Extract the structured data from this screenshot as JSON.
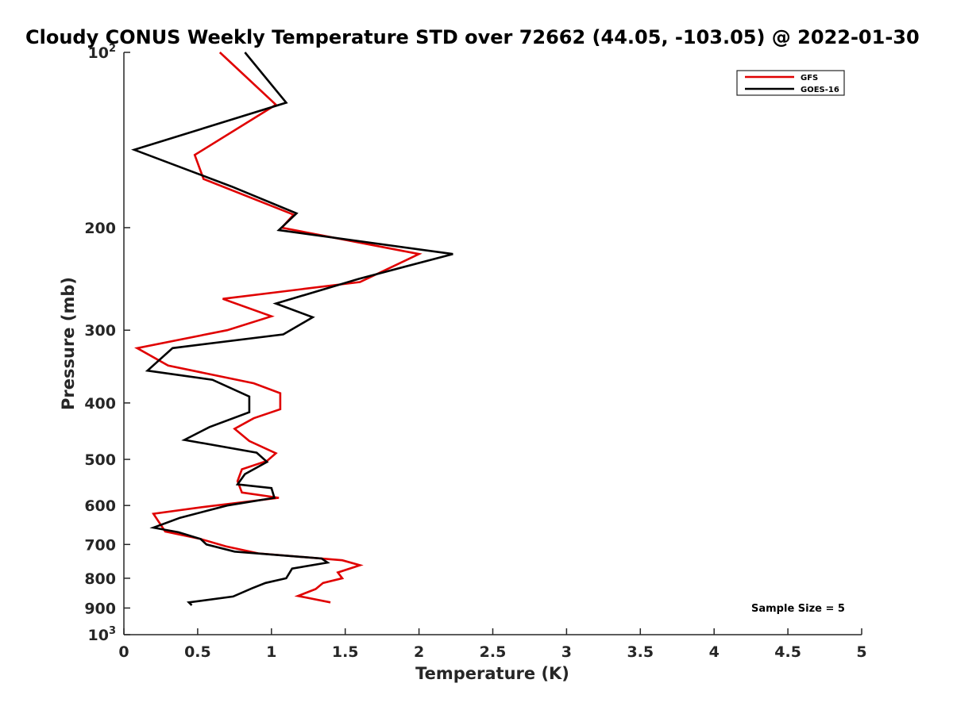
{
  "chart_data": {
    "type": "line",
    "title": "Cloudy CONUS Weekly Temperature STD over 72662 (44.05, -103.05) @ 2022-01-30",
    "xlabel": "Temperature (K)",
    "ylabel": "Pressure (mb)",
    "xlim": [
      0,
      5
    ],
    "ylim": [
      100,
      1000
    ],
    "y_scale": "log",
    "y_reversed": true,
    "grid": false,
    "legend_position": "top-right",
    "x_ticks": [
      0,
      0.5,
      1,
      1.5,
      2,
      2.5,
      3,
      3.5,
      4,
      4.5,
      5
    ],
    "x_tick_labels": [
      "0",
      "0.5",
      "1",
      "1.5",
      "2",
      "2.5",
      "3",
      "3.5",
      "4",
      "4.5",
      "5"
    ],
    "y_ticks": [
      100,
      200,
      300,
      400,
      500,
      600,
      700,
      800,
      900,
      1000
    ],
    "y_tick_labels": [
      {
        "base": "10",
        "exp": "2"
      },
      {
        "base": "200",
        "exp": ""
      },
      {
        "base": "300",
        "exp": ""
      },
      {
        "base": "400",
        "exp": ""
      },
      {
        "base": "500",
        "exp": ""
      },
      {
        "base": "600",
        "exp": ""
      },
      {
        "base": "700",
        "exp": ""
      },
      {
        "base": "800",
        "exp": ""
      },
      {
        "base": "900",
        "exp": ""
      },
      {
        "base": "10",
        "exp": "3"
      }
    ],
    "series": [
      {
        "name": "GFS",
        "color": "#e00000",
        "points": [
          [
            0.65,
            100
          ],
          [
            1.03,
            123
          ],
          [
            0.48,
            150
          ],
          [
            0.54,
            165
          ],
          [
            1.15,
            190
          ],
          [
            1.07,
            200
          ],
          [
            2.0,
            222
          ],
          [
            1.6,
            248
          ],
          [
            0.67,
            265
          ],
          [
            1.0,
            284
          ],
          [
            0.7,
            300
          ],
          [
            0.09,
            322
          ],
          [
            0.3,
            345
          ],
          [
            0.88,
            370
          ],
          [
            1.06,
            385
          ],
          [
            1.06,
            410
          ],
          [
            0.88,
            425
          ],
          [
            0.75,
            443
          ],
          [
            0.85,
            465
          ],
          [
            1.03,
            488
          ],
          [
            0.97,
            503
          ],
          [
            0.8,
            520
          ],
          [
            0.77,
            545
          ],
          [
            0.8,
            570
          ],
          [
            1.05,
            582
          ],
          [
            0.55,
            603
          ],
          [
            0.2,
            620
          ],
          [
            0.28,
            665
          ],
          [
            0.52,
            685
          ],
          [
            0.69,
            705
          ],
          [
            0.91,
            725
          ],
          [
            1.48,
            745
          ],
          [
            1.6,
            760
          ],
          [
            1.45,
            782
          ],
          [
            1.48,
            800
          ],
          [
            1.35,
            815
          ],
          [
            1.3,
            835
          ],
          [
            1.18,
            858
          ],
          [
            1.4,
            880
          ]
        ]
      },
      {
        "name": "GOES-16",
        "color": "#000000",
        "points": [
          [
            0.82,
            100
          ],
          [
            1.1,
            122
          ],
          [
            0.07,
            147
          ],
          [
            0.73,
            170
          ],
          [
            1.17,
            189
          ],
          [
            1.05,
            202
          ],
          [
            2.23,
            222
          ],
          [
            1.59,
            245
          ],
          [
            1.03,
            270
          ],
          [
            1.28,
            285
          ],
          [
            1.08,
            305
          ],
          [
            0.33,
            322
          ],
          [
            0.16,
            352
          ],
          [
            0.6,
            365
          ],
          [
            0.85,
            390
          ],
          [
            0.85,
            415
          ],
          [
            0.58,
            440
          ],
          [
            0.41,
            463
          ],
          [
            0.9,
            487
          ],
          [
            0.97,
            505
          ],
          [
            0.82,
            530
          ],
          [
            0.77,
            552
          ],
          [
            1.0,
            560
          ],
          [
            1.02,
            582
          ],
          [
            0.7,
            600
          ],
          [
            0.38,
            630
          ],
          [
            0.2,
            655
          ],
          [
            0.37,
            667
          ],
          [
            0.52,
            685
          ],
          [
            0.56,
            700
          ],
          [
            0.75,
            720
          ],
          [
            1.34,
            740
          ],
          [
            1.38,
            752
          ],
          [
            1.14,
            770
          ],
          [
            1.1,
            800
          ],
          [
            0.96,
            815
          ],
          [
            0.87,
            832
          ],
          [
            0.74,
            860
          ],
          [
            0.44,
            880
          ],
          [
            0.46,
            890
          ]
        ]
      }
    ],
    "annotations": [
      "Sample Size = 5"
    ]
  }
}
